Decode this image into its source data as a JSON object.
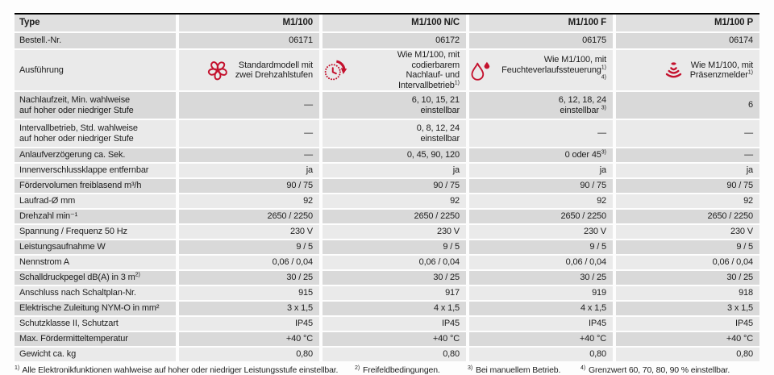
{
  "accent_color": "#c4122e",
  "table": {
    "header": {
      "label": "Type",
      "values": [
        "M1/100",
        "M1/100 N/C",
        "M1/100 F",
        "M1/100 P"
      ]
    },
    "bestell": {
      "label": "Bestell.-Nr.",
      "values": [
        "06171",
        "06172",
        "06175",
        "06174"
      ]
    },
    "ausfuehrung": {
      "label": "Ausführung",
      "cells": [
        {
          "icon": "fan-icon",
          "lines": [
            "Standardmodell mit",
            "zwei Drehzahlstufen"
          ]
        },
        {
          "icon": "timer-icon",
          "lines": [
            "Wie M1/100, mit codierbarem",
            "Nachlauf- und Intervallbetrieb^1)"
          ]
        },
        {
          "icon": "water-drops-icon",
          "lines": [
            "Wie M1/100, mit",
            "Feuchteverlaufssteuerung^1) 4)"
          ]
        },
        {
          "icon": "presence-sensor-icon",
          "lines": [
            "Wie M1/100, mit",
            "Präsenzmelder^1)"
          ]
        }
      ]
    },
    "rows": [
      {
        "shade": "dark",
        "h": 33,
        "label": [
          "Nachlaufzeit, Min. wahlweise",
          "auf hoher oder niedriger Stufe"
        ],
        "values": [
          [
            "—"
          ],
          [
            "6, 10, 15, 21",
            "einstellbar"
          ],
          [
            "6, 12, 18, 24",
            "einstellbar ^3)"
          ],
          [
            "6"
          ]
        ]
      },
      {
        "shade": "light",
        "h": 33,
        "label": [
          "Intervallbetrieb, Std. wahlweise",
          "auf hoher oder niedriger Stufe"
        ],
        "values": [
          [
            "—"
          ],
          [
            "0, 8, 12, 24",
            "einstellbar"
          ],
          [
            "—"
          ],
          [
            "—"
          ]
        ]
      },
      {
        "shade": "dark",
        "h": 17,
        "label": [
          "Anlaufverzögerung ca. Sek."
        ],
        "values": [
          [
            "—"
          ],
          [
            "0, 45, 90, 120"
          ],
          [
            "0 oder 45^3)"
          ],
          [
            "—"
          ]
        ]
      },
      {
        "shade": "light",
        "h": 17,
        "label": [
          "Innenverschlussklappe entfernbar"
        ],
        "values": [
          [
            "ja"
          ],
          [
            "ja"
          ],
          [
            "ja"
          ],
          [
            "ja"
          ]
        ]
      },
      {
        "shade": "dark",
        "h": 17,
        "label": [
          "Fördervolumen freiblasend m³/h"
        ],
        "values": [
          [
            "90 / 75"
          ],
          [
            "90 / 75"
          ],
          [
            "90 / 75"
          ],
          [
            "90 / 75"
          ]
        ]
      },
      {
        "shade": "light",
        "h": 17,
        "label": [
          "Laufrad-Ø mm"
        ],
        "values": [
          [
            "92"
          ],
          [
            "92"
          ],
          [
            "92"
          ],
          [
            "92"
          ]
        ]
      },
      {
        "shade": "dark",
        "h": 17,
        "label": [
          "Drehzahl min⁻¹"
        ],
        "values": [
          [
            "2650 / 2250"
          ],
          [
            "2650 / 2250"
          ],
          [
            "2650 / 2250"
          ],
          [
            "2650 / 2250"
          ]
        ]
      },
      {
        "shade": "light",
        "h": 17,
        "label": [
          "Spannung / Frequenz 50 Hz"
        ],
        "values": [
          [
            "230 V"
          ],
          [
            "230 V"
          ],
          [
            "230 V"
          ],
          [
            "230 V"
          ]
        ]
      },
      {
        "shade": "dark",
        "h": 17,
        "label": [
          "Leistungsaufnahme W"
        ],
        "values": [
          [
            "9 / 5"
          ],
          [
            "9 / 5"
          ],
          [
            "9 / 5"
          ],
          [
            "9 / 5"
          ]
        ]
      },
      {
        "shade": "light",
        "h": 17,
        "label": [
          "Nennstrom A"
        ],
        "values": [
          [
            "0,06 / 0,04"
          ],
          [
            "0,06 / 0,04"
          ],
          [
            "0,06 / 0,04"
          ],
          [
            "0,06 / 0,04"
          ]
        ]
      },
      {
        "shade": "dark",
        "h": 17,
        "label": [
          "Schalldruckpegel dB(A) in 3 m^2)"
        ],
        "values": [
          [
            "30 / 25"
          ],
          [
            "30 / 25"
          ],
          [
            "30 / 25"
          ],
          [
            "30 / 25"
          ]
        ]
      },
      {
        "shade": "light",
        "h": 17,
        "label": [
          "Anschluss nach Schaltplan-Nr."
        ],
        "values": [
          [
            "915"
          ],
          [
            "917"
          ],
          [
            "919"
          ],
          [
            "918"
          ]
        ]
      },
      {
        "shade": "dark",
        "h": 17,
        "label": [
          "Elektrische Zuleitung NYM-O in mm²"
        ],
        "values": [
          [
            "3 x 1,5"
          ],
          [
            "4 x 1,5"
          ],
          [
            "4 x 1,5"
          ],
          [
            "3 x 1,5"
          ]
        ]
      },
      {
        "shade": "light",
        "h": 17,
        "label": [
          "Schutzklasse II, Schutzart"
        ],
        "values": [
          [
            "IP45"
          ],
          [
            "IP45"
          ],
          [
            "IP45"
          ],
          [
            "IP45"
          ]
        ]
      },
      {
        "shade": "dark",
        "h": 17,
        "label": [
          "Max. Fördermitteltemperatur"
        ],
        "values": [
          [
            "+40 °C"
          ],
          [
            "+40 °C"
          ],
          [
            "+40 °C"
          ],
          [
            "+40 °C"
          ]
        ]
      },
      {
        "shade": "light",
        "h": 17,
        "label": [
          "Gewicht ca. kg"
        ],
        "values": [
          [
            "0,80"
          ],
          [
            "0,80"
          ],
          [
            "0,80"
          ],
          [
            "0,80"
          ]
        ]
      }
    ]
  },
  "footnotes": [
    {
      "sup": "1)",
      "text": "Alle Elektronikfunktionen wahlweise auf hoher oder niedriger Leistungsstufe einstellbar."
    },
    {
      "sup": "2)",
      "text": "Freifeldbedingungen."
    },
    {
      "sup": "3)",
      "text": "Bei manuellem Betrieb."
    },
    {
      "sup": "4)",
      "text": "Grenzwert 60, 70, 80, 90 % einstellbar."
    }
  ]
}
